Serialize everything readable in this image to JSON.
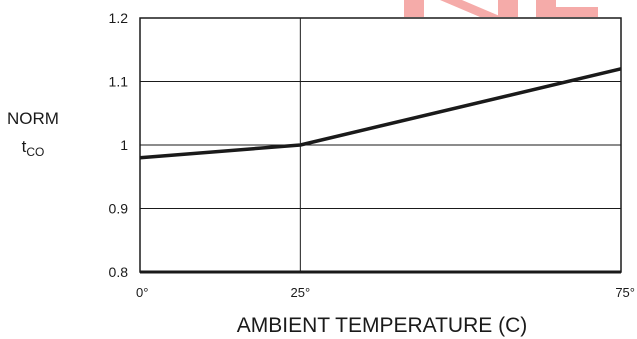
{
  "chart_data": {
    "type": "line",
    "title": "",
    "xlabel": "AMBIENT TEMPERATURE (C)",
    "ylabel": {
      "main": "NORM",
      "base": "t",
      "sub": "CO"
    },
    "x": [
      0,
      25,
      75
    ],
    "x_tick_values": [
      0,
      25,
      75
    ],
    "x_tick_labels": [
      "0°",
      "25°",
      "75°"
    ],
    "xlim": [
      0,
      75
    ],
    "y_ticks": [
      0.8,
      0.9,
      1,
      1.1,
      1.2
    ],
    "y_tick_labels": [
      "0.8",
      "0.9",
      "1",
      "1.1",
      "1.2"
    ],
    "ylim": [
      0.8,
      1.2
    ],
    "grid": true,
    "series": [
      {
        "values": [
          0.98,
          1.0,
          1.12
        ],
        "color": "#1a1a1a"
      }
    ]
  },
  "colors": {
    "watermark": "#f5a3a0",
    "axis": "#1a1a1a"
  }
}
